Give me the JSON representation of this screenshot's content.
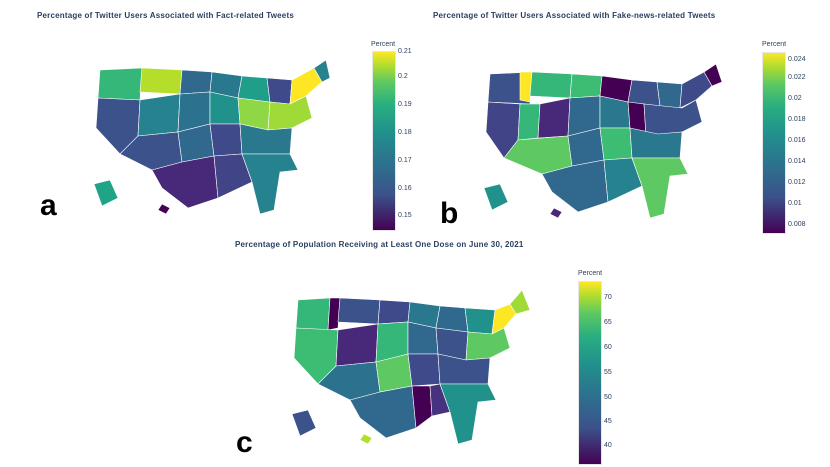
{
  "panels": [
    {
      "letter": "a",
      "title": "Percentage of Twitter Users Associated with Fact-related Tweets",
      "colorbar": {
        "title": "Percent",
        "ticks": [
          "0.21",
          "0.2",
          "0.19",
          "0.18",
          "0.17",
          "0.16",
          "0.15"
        ]
      }
    },
    {
      "letter": "b",
      "title": "Percentage of Twitter Users Associated with Fake-news-related Tweets",
      "colorbar": {
        "title": "Percent",
        "ticks": [
          "0.024",
          "0.022",
          "0.02",
          "0.018",
          "0.016",
          "0.014",
          "0.012",
          "0.01",
          "0.008"
        ]
      }
    },
    {
      "letter": "c",
      "title": "Percentage of Population Receiving at Least One Dose on June 30, 2021",
      "colorbar": {
        "title": "Percent",
        "ticks": [
          "70",
          "65",
          "60",
          "55",
          "50",
          "45",
          "40"
        ]
      }
    }
  ],
  "colorscale": "viridis",
  "map_region": "United States"
}
